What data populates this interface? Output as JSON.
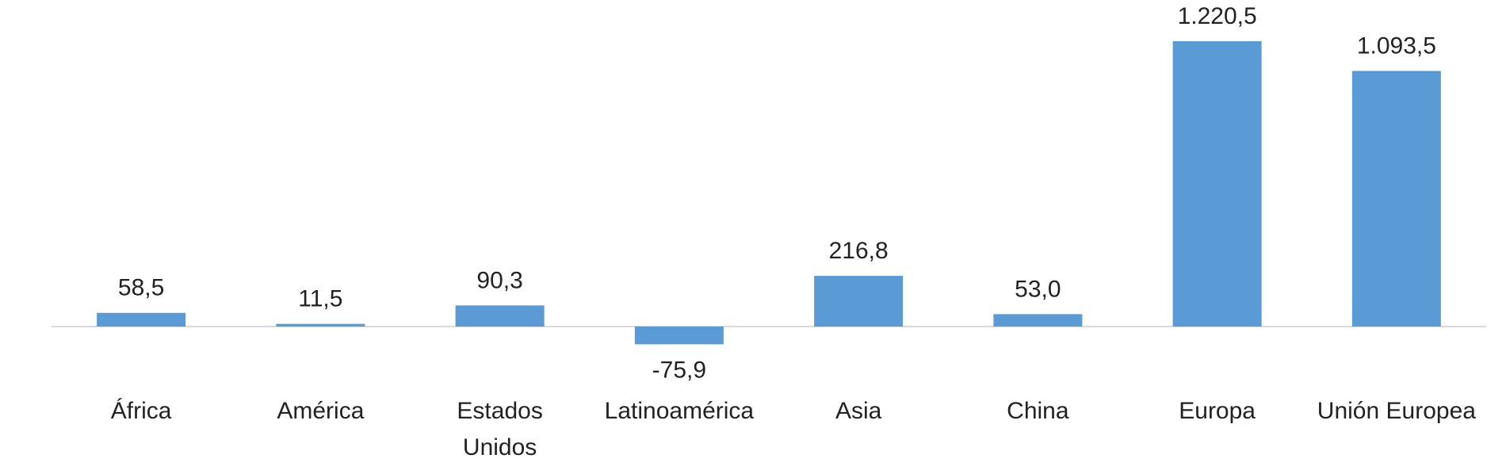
{
  "chart_data": {
    "type": "bar",
    "categories": [
      "África",
      "América",
      "Estados Unidos",
      "Latinoamérica",
      "Asia",
      "China",
      "Europa",
      "Unión Europea"
    ],
    "values": [
      58.5,
      11.5,
      90.3,
      -75.9,
      216.8,
      53.0,
      1220.5,
      1093.5
    ],
    "value_labels": [
      "58,5",
      "11,5",
      "90,3",
      "-75,9",
      "216,8",
      "53,0",
      "1.220,5",
      "1.093,5"
    ],
    "color": "#5b9bd5"
  }
}
